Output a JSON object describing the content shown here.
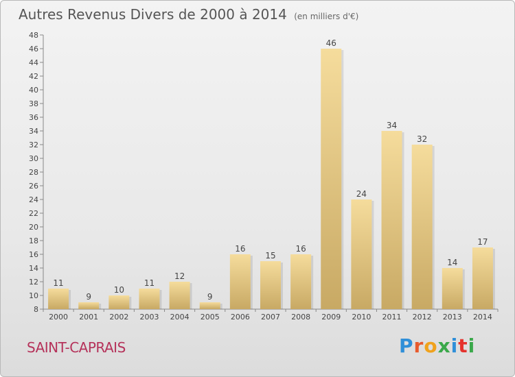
{
  "header": {
    "title": "Autres Revenus Divers de 2000 à 2014",
    "subtitle": "(en milliers d'€)"
  },
  "footer": {
    "location": "SAINT-CAPRAIS",
    "logo_text": "Proxiti"
  },
  "colors": {
    "bar_light": "#f5dc9c",
    "bar_dark": "#c8a964",
    "axis": "#888888",
    "location": "#b5325a"
  },
  "chart_data": {
    "type": "bar",
    "title": "Autres Revenus Divers de 2000 à 2014",
    "subtitle": "(en milliers d'€)",
    "categories": [
      "2000",
      "2001",
      "2002",
      "2003",
      "2004",
      "2005",
      "2006",
      "2007",
      "2008",
      "2009",
      "2010",
      "2011",
      "2012",
      "2013",
      "2014"
    ],
    "values": [
      11,
      9,
      10,
      11,
      12,
      9,
      16,
      15,
      16,
      46,
      24,
      34,
      32,
      14,
      17
    ],
    "ylim": [
      8,
      48
    ],
    "yticks": [
      8,
      10,
      12,
      14,
      16,
      18,
      20,
      22,
      24,
      26,
      28,
      30,
      32,
      34,
      36,
      38,
      40,
      42,
      44,
      46,
      48
    ],
    "grid": false,
    "legend": "none"
  }
}
